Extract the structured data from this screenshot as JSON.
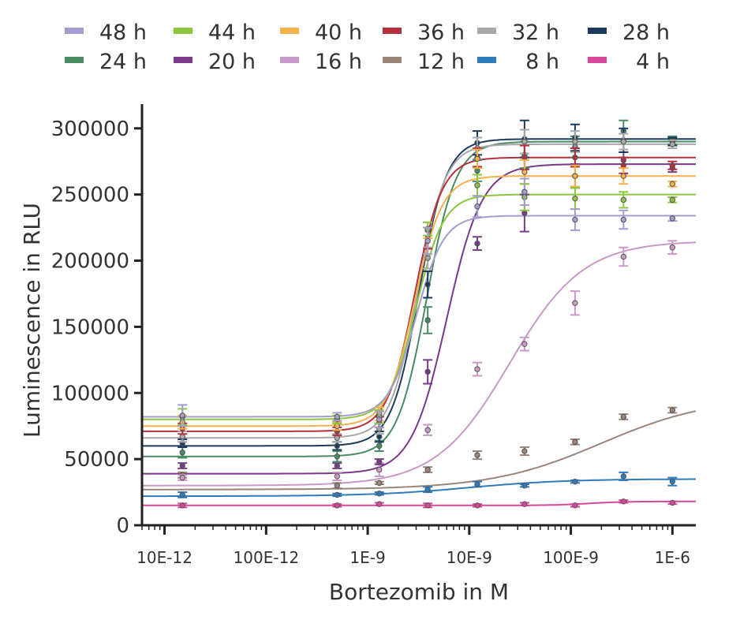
{
  "chart_data": {
    "type": "scatter",
    "title": "",
    "xlabel": "Bortezomib in M",
    "ylabel": "Luminescence in RLU",
    "x_scale": "log",
    "xlim": [
      6e-12,
      1.7e-06
    ],
    "ylim": [
      0,
      310000
    ],
    "grid": false,
    "legend_position": "top",
    "x_ticks": [
      {
        "value": 1e-11,
        "label": "10E-12"
      },
      {
        "value": 1e-10,
        "label": "100E-12"
      },
      {
        "value": 1e-09,
        "label": "1E-9"
      },
      {
        "value": 1e-08,
        "label": "10E-9"
      },
      {
        "value": 1e-07,
        "label": "100E-9"
      },
      {
        "value": 1e-06,
        "label": "1E-6"
      }
    ],
    "y_ticks": [
      {
        "value": 0,
        "label": "0"
      },
      {
        "value": 50000,
        "label": "50000"
      },
      {
        "value": 100000,
        "label": "100000"
      },
      {
        "value": 150000,
        "label": "150000"
      },
      {
        "value": 200000,
        "label": "200000"
      },
      {
        "value": 250000,
        "label": "250000"
      },
      {
        "value": 300000,
        "label": "300000"
      }
    ],
    "x": [
      1.5e-11,
      5e-10,
      1.3e-09,
      3.9e-09,
      1.2e-08,
      3.5e-08,
      1.1e-07,
      3.3e-07,
      1e-06
    ],
    "series": [
      {
        "name": "48 h",
        "color": "#a39ecf",
        "bottom": 82000,
        "top": 234000,
        "ec50": 3e-09,
        "hill": 3.2,
        "y": [
          83000,
          82000,
          80000,
          215000,
          241000,
          252000,
          231000,
          231000,
          232000
        ],
        "err": [
          8000,
          3000,
          6000,
          10000,
          8000,
          10000,
          8000,
          7000,
          2000
        ]
      },
      {
        "name": "44 h",
        "color": "#8dc63f",
        "bottom": 80000,
        "top": 250000,
        "ec50": 3e-09,
        "hill": 3.2,
        "y": [
          82000,
          80000,
          82000,
          224000,
          257000,
          248000,
          247000,
          246000,
          246000
        ],
        "err": [
          6000,
          3000,
          5000,
          5000,
          8000,
          10000,
          8000,
          6000,
          2000
        ]
      },
      {
        "name": "40 h",
        "color": "#f6b24a",
        "bottom": 75000,
        "top": 264000,
        "ec50": 2.9e-09,
        "hill": 3.2,
        "y": [
          78000,
          75000,
          84000,
          223000,
          277000,
          267000,
          264000,
          264000,
          258000
        ],
        "err": [
          5000,
          3000,
          5000,
          6000,
          7000,
          9000,
          8000,
          6000,
          2000
        ]
      },
      {
        "name": "36 h",
        "color": "#b5303b",
        "bottom": 71000,
        "top": 278000,
        "ec50": 2.9e-09,
        "hill": 3.2,
        "y": [
          73000,
          71000,
          78000,
          217000,
          278000,
          278000,
          278000,
          272000,
          272000
        ],
        "err": [
          4000,
          3000,
          4000,
          8000,
          7000,
          9000,
          7000,
          6000,
          3000
        ]
      },
      {
        "name": "32 h",
        "color": "#a8a8a8",
        "bottom": 66000,
        "top": 288000,
        "ec50": 3.1e-09,
        "hill": 3.2,
        "y": [
          67000,
          66000,
          73000,
          202000,
          285000,
          290000,
          290000,
          290000,
          288000
        ],
        "err": [
          4000,
          3000,
          4000,
          8000,
          8000,
          9000,
          8000,
          6000,
          3000
        ]
      },
      {
        "name": "28 h",
        "color": "#1a3b5e",
        "bottom": 60000,
        "top": 292000,
        "ec50": 3.2e-09,
        "hill": 3.2,
        "y": [
          62000,
          60000,
          67000,
          182000,
          289000,
          292000,
          293000,
          291000,
          290000
        ],
        "err": [
          3000,
          3000,
          4000,
          10000,
          9000,
          14000,
          10000,
          9000,
          3000
        ]
      },
      {
        "name": "24 h",
        "color": "#4a8b63",
        "bottom": 52000,
        "top": 290000,
        "ec50": 3.8e-09,
        "hill": 3.0,
        "y": [
          55000,
          52000,
          60000,
          155000,
          268000,
          280000,
          286000,
          298000,
          291000
        ],
        "err": [
          4000,
          4000,
          4000,
          10000,
          8000,
          10000,
          8000,
          8000,
          3000
        ]
      },
      {
        "name": "20 h",
        "color": "#7a3a8a",
        "bottom": 39000,
        "top": 273000,
        "ec50": 6e-09,
        "hill": 2.5,
        "y": [
          45000,
          45000,
          48000,
          116000,
          213000,
          236000,
          264000,
          276000,
          270000
        ],
        "err": [
          2000,
          2000,
          2000,
          9000,
          5000,
          14000,
          9000,
          6000,
          3000
        ]
      },
      {
        "name": "16 h",
        "color": "#c99ac8",
        "bottom": 30000,
        "top": 215000,
        "ec50": 2.5e-08,
        "hill": 1.2,
        "y": [
          36000,
          37000,
          42000,
          72000,
          118000,
          137000,
          168000,
          203000,
          210000
        ],
        "err": [
          2000,
          3000,
          5000,
          4000,
          5000,
          5000,
          9000,
          7000,
          5000
        ]
      },
      {
        "name": "12 h",
        "color": "#9b857a",
        "bottom": 27000,
        "top": 97000,
        "ec50": 2e-07,
        "hill": 0.8,
        "y": [
          38000,
          30000,
          32000,
          42000,
          53000,
          56000,
          63000,
          82000,
          87000
        ],
        "err": [
          2000,
          2000,
          1000,
          2000,
          3000,
          3000,
          2000,
          2000,
          2000
        ]
      },
      {
        "name": "8 h",
        "color": "#2f7bbd",
        "bottom": 22000,
        "top": 35000,
        "ec50": 1e-08,
        "hill": 0.9,
        "y": [
          23000,
          23000,
          24000,
          27000,
          31000,
          30000,
          33000,
          37000,
          33000
        ],
        "err": [
          2000,
          1000,
          1000,
          2000,
          2000,
          1000,
          1000,
          3000,
          3000
        ]
      },
      {
        "name": "4 h",
        "color": "#d9479a",
        "bottom": 15000,
        "top": 18000,
        "ec50": 1.5e-07,
        "hill": 2.5,
        "y": [
          15000,
          15000,
          16000,
          15000,
          15000,
          16000,
          15000,
          18000,
          17000
        ],
        "err": [
          1500,
          1000,
          1000,
          1500,
          1000,
          1000,
          1000,
          1000,
          1000
        ]
      }
    ]
  }
}
